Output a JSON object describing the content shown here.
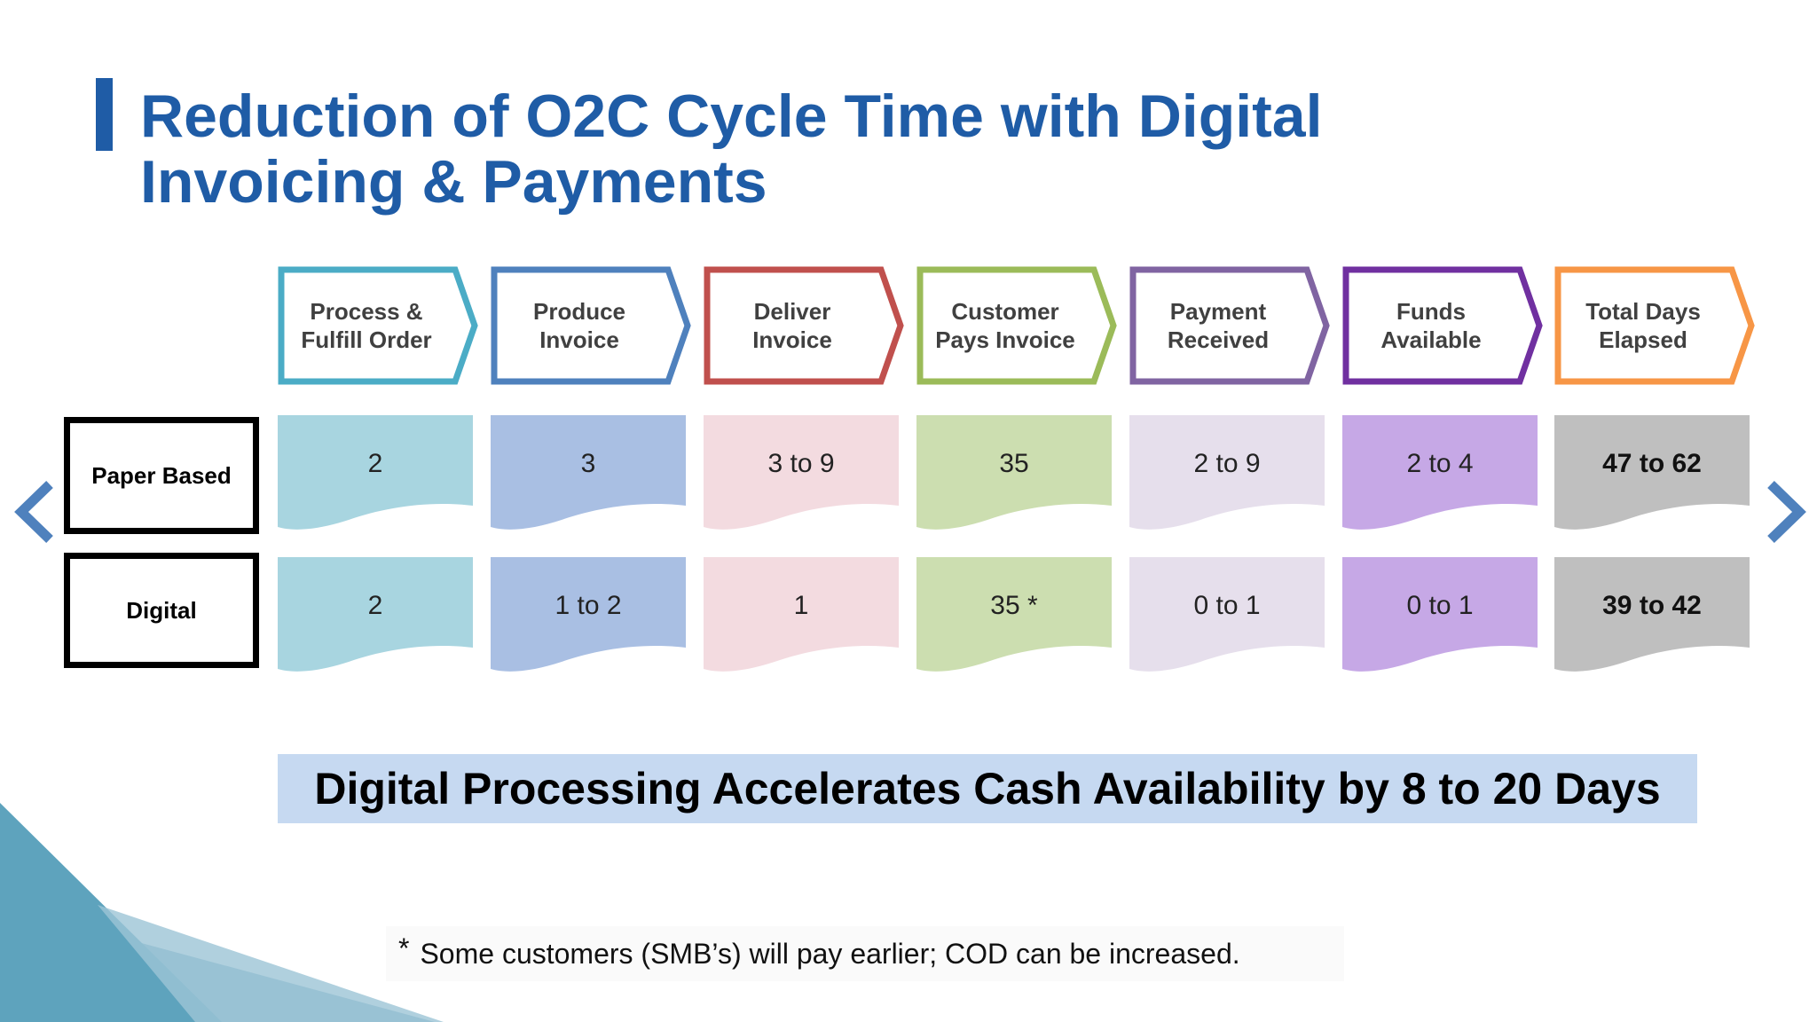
{
  "title": "Reduction of O2C Cycle Time with Digital Invoicing & Payments",
  "steps": [
    {
      "label": "Process &\nFulfill Order",
      "color": "#4bacc6",
      "fill": "#a8d5e0"
    },
    {
      "label": "Produce\nInvoice",
      "color": "#4f81bd",
      "fill": "#a9bfe3"
    },
    {
      "label": "Deliver\nInvoice",
      "color": "#c0504d",
      "fill": "#f3dbe0"
    },
    {
      "label": "Customer\nPays Invoice",
      "color": "#9bbb59",
      "fill": "#ccdeb0"
    },
    {
      "label": "Payment\nReceived",
      "color": "#8064a2",
      "fill": "#e6dfec"
    },
    {
      "label": "Funds\nAvailable",
      "color": "#7030a0",
      "fill": "#c6a8e6"
    },
    {
      "label": "Total Days\nElapsed",
      "color": "#f79646",
      "fill": "#bfbfbf"
    }
  ],
  "rows": [
    {
      "label": "Paper Based",
      "values": [
        "2",
        "3",
        "3 to 9",
        "35",
        "2 to 9",
        "2 to 4",
        "47 to 62"
      ]
    },
    {
      "label": "Digital",
      "values": [
        "2",
        "1 to 2",
        "1",
        "35 *",
        "0 to 1",
        "0 to 1",
        "39 to 42"
      ]
    }
  ],
  "banner": "Digital Processing Accelerates Cash Availability by 8 to 20 Days",
  "footnote": {
    "star": "*",
    "text": "Some customers (SMB’s) will pay earlier; COD can be increased."
  },
  "nav": {
    "prev_icon": "chevron-left-icon",
    "next_icon": "chevron-right-icon",
    "color": "#4f81bd"
  }
}
